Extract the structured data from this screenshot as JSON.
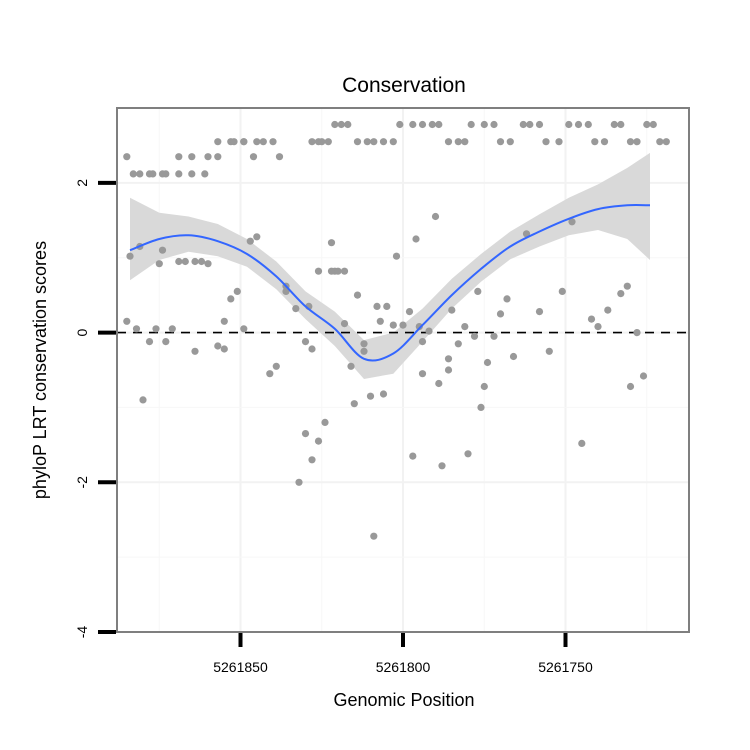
{
  "chart_data": {
    "type": "scatter",
    "title": "Conservation",
    "xlabel": "Genomic Position",
    "ylabel": "phyloP LRT conservation scores",
    "x_reversed": true,
    "xlim": [
      5261888,
      5261712
    ],
    "ylim": [
      -4,
      3
    ],
    "xticks": [
      5261850,
      5261800,
      5261750
    ],
    "xtick_labels": [
      "5261850",
      "5261800",
      "5261750"
    ],
    "yticks": [
      -4,
      -2,
      0,
      2
    ],
    "ytick_labels": [
      "-4",
      "-2",
      "0",
      "2"
    ],
    "grid": true,
    "reference_line": {
      "y": 0,
      "style": "dashed"
    },
    "colors": {
      "points": "#999999",
      "smooth_line": "#3366FF",
      "confidence_band": "#D9D9D9",
      "panel_border": "#7F7F7F"
    },
    "smooth": {
      "x": [
        5261884,
        5261875,
        5261866,
        5261857,
        5261848,
        5261839,
        5261830,
        5261821,
        5261812,
        5261803,
        5261794,
        5261785,
        5261776,
        5261767,
        5261758,
        5261749,
        5261740,
        5261731,
        5261724
      ],
      "y": [
        1.1,
        1.25,
        1.3,
        1.22,
        1.05,
        0.75,
        0.35,
        0.05,
        -0.35,
        -0.28,
        0.1,
        0.5,
        0.85,
        1.15,
        1.35,
        1.52,
        1.65,
        1.7,
        1.7
      ],
      "lower": [
        0.7,
        0.97,
        1.08,
        1.02,
        0.88,
        0.58,
        0.18,
        -0.18,
        -0.62,
        -0.55,
        -0.12,
        0.32,
        0.68,
        0.98,
        1.15,
        1.3,
        1.37,
        1.25,
        0.97
      ],
      "upper": [
        1.8,
        1.6,
        1.55,
        1.45,
        1.25,
        0.95,
        0.55,
        0.28,
        -0.1,
        0.0,
        0.32,
        0.72,
        1.05,
        1.35,
        1.58,
        1.8,
        1.98,
        2.2,
        2.4
      ]
    },
    "points": {
      "x": [
        5261885,
        5261884,
        5261882,
        5261880,
        5261881,
        5261878,
        5261876,
        5261875,
        5261874,
        5261873,
        5261871,
        5261869,
        5261867,
        5261864,
        5261862,
        5261860,
        5261857,
        5261855,
        5261853,
        5261851,
        5261849,
        5261847,
        5261845,
        5261841,
        5261839,
        5261836,
        5261833,
        5261830,
        5261828,
        5261826,
        5261883,
        5261878,
        5261874,
        5261869,
        5261865,
        5261861,
        5261857,
        5261853,
        5261849,
        5261845,
        5261885,
        5261881,
        5261877,
        5261873,
        5261869,
        5261865,
        5261860,
        5261857,
        5261852,
        5261849,
        5261846,
        5261843,
        5261840,
        5261838,
        5261836,
        5261832,
        5261830,
        5261828,
        5261826,
        5261824,
        5261822,
        5261821,
        5261820,
        5261818,
        5261816,
        5261815,
        5261814,
        5261812,
        5261810,
        5261809,
        5261808,
        5261806,
        5261805,
        5261803,
        5261802,
        5261800,
        5261798,
        5261797,
        5261796,
        5261795,
        5261794,
        5261792,
        5261790,
        5261789,
        5261788,
        5261786,
        5261785,
        5261783,
        5261781,
        5261780,
        5261778,
        5261777,
        5261776,
        5261775,
        5261774,
        5261772,
        5261770,
        5261768,
        5261766,
        5261762,
        5261758,
        5261755,
        5261751,
        5261748,
        5261745,
        5261742,
        5261740,
        5261737,
        5261733,
        5261731,
        5261730,
        5261728,
        5261726,
        5261822,
        5261812,
        5261807,
        5261786,
        5261794,
        5261818,
        5261829,
        5261864,
        5261855
      ],
      "y": [
        0.15,
        1.02,
        0.05,
        -0.9,
        1.15,
        -0.12,
        0.05,
        0.92,
        1.1,
        -0.12,
        0.05,
        0.95,
        0.95,
        0.95,
        0.95,
        0.92,
        -0.18,
        -0.22,
        0.45,
        0.55,
        0.05,
        1.22,
        1.28,
        -0.55,
        -0.45,
        0.62,
        0.32,
        -0.12,
        -0.22,
        0.82,
        2.12,
        2.12,
        2.12,
        2.12,
        2.12,
        2.12,
        2.35,
        2.55,
        2.55,
        2.55,
        2.35,
        2.12,
        2.12,
        2.12,
        2.35,
        2.35,
        2.35,
        2.55,
        2.55,
        2.55,
        2.35,
        2.55,
        2.55,
        2.35,
        0.55,
        -2.0,
        -1.35,
        -1.7,
        -1.45,
        -1.2,
        0.82,
        0.82,
        0.82,
        0.82,
        -0.45,
        -0.95,
        0.5,
        -0.25,
        -0.85,
        -2.72,
        0.35,
        -0.82,
        0.35,
        0.1,
        1.02,
        0.1,
        0.28,
        -1.65,
        1.25,
        0.08,
        -0.12,
        0.02,
        1.55,
        -0.68,
        -1.78,
        -0.5,
        0.3,
        -0.15,
        0.08,
        -1.62,
        -0.05,
        0.55,
        -1.0,
        -0.72,
        -0.4,
        -0.05,
        0.25,
        0.45,
        -0.32,
        1.32,
        0.28,
        -0.25,
        0.55,
        1.48,
        -1.48,
        0.18,
        0.08,
        0.3,
        0.52,
        0.62,
        -0.72,
        0.0,
        -0.58,
        1.2,
        -0.15,
        0.15,
        -0.35,
        -0.55,
        0.12,
        0.35,
        -0.25,
        0.15
      ],
      "top_band_x": [
        5261828,
        5261826,
        5261825,
        5261823,
        5261821,
        5261819,
        5261817,
        5261814,
        5261811,
        5261809,
        5261806,
        5261803,
        5261801,
        5261797,
        5261794,
        5261791,
        5261789,
        5261786,
        5261783,
        5261781,
        5261779,
        5261775,
        5261772,
        5261770,
        5261767,
        5261763,
        5261761,
        5261758,
        5261756,
        5261752,
        5261749,
        5261746,
        5261743,
        5261741,
        5261738,
        5261735,
        5261733,
        5261730,
        5261728,
        5261725,
        5261723,
        5261721,
        5261719
      ],
      "top_band_y": [
        2.55,
        2.55,
        2.55,
        2.55,
        2.78,
        2.78,
        2.78,
        2.55,
        2.55,
        2.55,
        2.55,
        2.55,
        2.78,
        2.78,
        2.78,
        2.78,
        2.78,
        2.55,
        2.55,
        2.55,
        2.78,
        2.78,
        2.78,
        2.55,
        2.55,
        2.78,
        2.78,
        2.78,
        2.55,
        2.55,
        2.78,
        2.78,
        2.78,
        2.55,
        2.55,
        2.78,
        2.78,
        2.55,
        2.55,
        2.78,
        2.78,
        2.55,
        2.55
      ]
    }
  }
}
